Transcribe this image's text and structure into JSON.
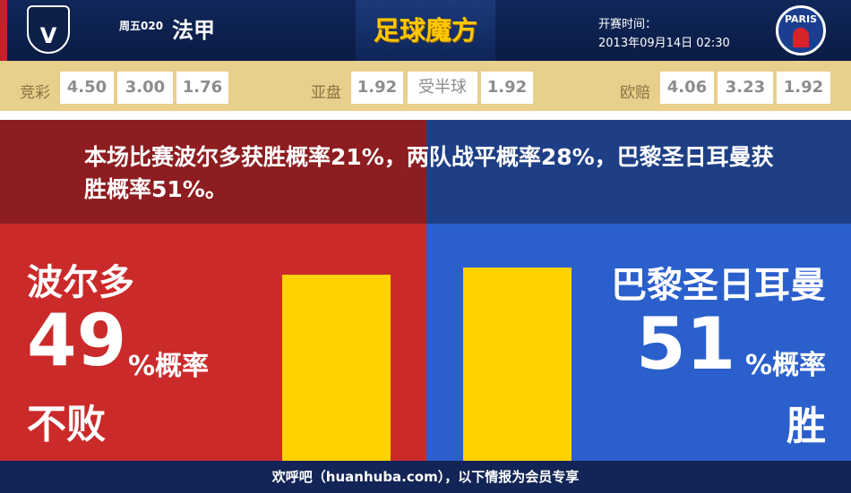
{
  "header": {
    "weekday_no": "周五020",
    "league": "法甲",
    "brand": "足球魔方",
    "kickoff_label": "开赛时间：",
    "kickoff_time": "2013年09月14日 02:30",
    "home_logo": "GIRONDINS DE BORDEAUX",
    "away_logo": "PARIS"
  },
  "odds": {
    "jc_label": "竞彩",
    "jc": [
      "4.50",
      "3.00",
      "1.76"
    ],
    "ya_label": "亚盘",
    "ya_home": "1.92",
    "ya_handicap": "受半球",
    "ya_away": "1.92",
    "eu_label": "欧赔",
    "eu": [
      "4.06",
      "3.23",
      "1.92"
    ]
  },
  "summary": "本场比赛波尔多获胜概率21%，两队战平概率28%，巴黎圣日耳曼获胜概率51%。",
  "home": {
    "name": "波尔多",
    "percent": "49",
    "unit": "%概率",
    "outcome": "不败",
    "value": 49
  },
  "away": {
    "name": "巴黎圣日耳曼",
    "percent": "51",
    "unit": "%概率",
    "outcome": "胜",
    "value": 51
  },
  "footer": "欢呼吧（huanhuba.com），以下情报为会员专享",
  "colors": {
    "home": "#cb2a2a",
    "away": "#2a5fcc",
    "bar": "#ffd200"
  }
}
